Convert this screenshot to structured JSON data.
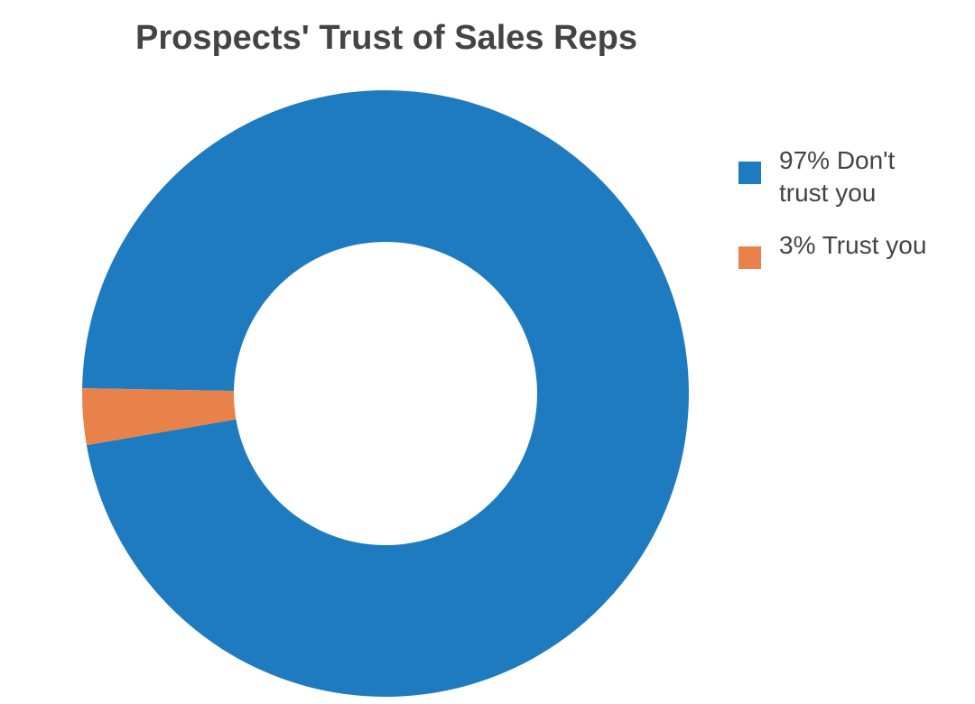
{
  "chart_data": {
    "type": "donut",
    "title": "Prospects' Trust of Sales Reps",
    "categories": [
      "97% Don't trust you",
      "3% Trust you"
    ],
    "values": [
      97,
      3
    ],
    "colors": [
      "#1f7bbf",
      "#e8824a"
    ],
    "legend": "right"
  }
}
